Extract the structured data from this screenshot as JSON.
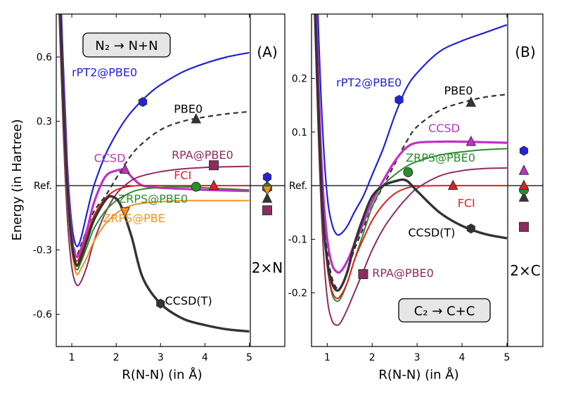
{
  "chart_data": [
    {
      "type": "line",
      "panel": "A",
      "title": "N₂ → N+N",
      "xlabel": "R(N-N) (in Å)",
      "ylabel": "Energy (in Hartree)",
      "xlim": [
        0.65,
        5.8
      ],
      "ylim": [
        -0.75,
        0.8
      ],
      "xticks": [
        1,
        2,
        3,
        4,
        5
      ],
      "yticks": [
        {
          "v": 0.6,
          "label": "0.6"
        },
        {
          "v": 0.3,
          "label": "0.3"
        },
        {
          "v": 0.0,
          "label": "Ref."
        },
        {
          "v": -0.3,
          "label": "-0.3"
        },
        {
          "v": -0.6,
          "label": "-0.6"
        }
      ],
      "limit_x": 5.0,
      "limit_label": "2×N",
      "series": [
        {
          "name": "rPT2@PBE0",
          "color": "#2222dd",
          "dash": false,
          "width": 2.2,
          "x": [
            0.65,
            0.8,
            0.9,
            1.0,
            1.1,
            1.2,
            1.35,
            1.5,
            1.75,
            2.0,
            2.25,
            2.5,
            2.75,
            3.0,
            3.5,
            4.0,
            4.5,
            5.0
          ],
          "y": [
            1.5,
            0.6,
            0.1,
            -0.18,
            -0.28,
            -0.25,
            -0.12,
            0.0,
            0.14,
            0.24,
            0.32,
            0.38,
            0.43,
            0.47,
            0.53,
            0.57,
            0.6,
            0.62
          ],
          "marker": {
            "shape": "hexagon",
            "x": 2.6,
            "y": 0.39,
            "label_x": 1.0,
            "label_y": 0.51
          },
          "limit_marker": {
            "shape": "hexagon",
            "y": 0.04
          }
        },
        {
          "name": "PBE0",
          "color": "#333333",
          "dash": true,
          "width": 2.2,
          "x": [
            0.65,
            0.8,
            0.9,
            1.0,
            1.1,
            1.2,
            1.35,
            1.5,
            1.75,
            1.9,
            2.2,
            2.5,
            3.0,
            3.5,
            4.0,
            4.5,
            5.0
          ],
          "y": [
            1.4,
            0.5,
            0.05,
            -0.22,
            -0.32,
            -0.28,
            -0.2,
            -0.12,
            -0.05,
            0.0,
            0.1,
            0.18,
            0.26,
            0.3,
            0.32,
            0.335,
            0.345
          ],
          "marker": {
            "shape": "triangle-up",
            "x": 3.8,
            "y": 0.31,
            "label_x": 3.3,
            "label_y": 0.34
          },
          "limit_marker": {
            "shape": "triangle-up",
            "y": -0.06
          }
        },
        {
          "name": "CCSD",
          "color": "#c030c8",
          "dash": false,
          "width": 3.2,
          "x": [
            0.65,
            0.8,
            0.9,
            1.0,
            1.1,
            1.2,
            1.35,
            1.5,
            1.75,
            2.0,
            2.2,
            2.4,
            2.6,
            3.0,
            3.5,
            4.0,
            5.0
          ],
          "y": [
            1.4,
            0.5,
            0.05,
            -0.24,
            -0.33,
            -0.3,
            -0.2,
            -0.08,
            0.04,
            0.07,
            0.07,
            0.03,
            0.0,
            -0.01,
            -0.015,
            -0.02,
            -0.025
          ],
          "marker": {
            "shape": "triangle-up",
            "x": 2.2,
            "y": 0.075,
            "label_x": 1.5,
            "label_y": 0.11
          },
          "limit_marker": {
            "shape": "triangle-up",
            "y": -0.005
          }
        },
        {
          "name": "RPA@PBE0",
          "color": "#8e2c5e",
          "dash": false,
          "width": 2.0,
          "x": [
            0.65,
            0.8,
            0.9,
            1.0,
            1.1,
            1.2,
            1.35,
            1.5,
            1.75,
            2.0,
            2.25,
            2.5,
            3.0,
            3.5,
            4.0,
            4.5,
            5.0
          ],
          "y": [
            1.2,
            0.3,
            -0.15,
            -0.38,
            -0.46,
            -0.45,
            -0.37,
            -0.26,
            -0.13,
            -0.04,
            0.01,
            0.04,
            0.065,
            0.078,
            0.085,
            0.088,
            0.09
          ],
          "marker": {
            "shape": "square",
            "x": 4.2,
            "y": 0.095,
            "label_x": 3.25,
            "label_y": 0.125
          },
          "limit_marker": {
            "shape": "square",
            "y": -0.115
          }
        },
        {
          "name": "FCI",
          "color": "#e02020",
          "dash": false,
          "width": 2.0,
          "x": [
            0.65,
            0.8,
            0.9,
            1.0,
            1.1,
            1.2,
            1.35,
            1.5,
            1.75,
            2.0,
            2.25,
            2.5,
            3.0,
            3.5,
            4.0,
            4.5,
            5.0
          ],
          "y": [
            1.4,
            0.45,
            0.0,
            -0.26,
            -0.35,
            -0.32,
            -0.23,
            -0.14,
            -0.06,
            -0.02,
            -0.005,
            0.0,
            0.0,
            0.0,
            0.0,
            0.0,
            0.0
          ],
          "marker": {
            "shape": "triangle-up",
            "x": 4.2,
            "y": 0.0,
            "label_x": 3.3,
            "label_y": 0.03
          },
          "limit_marker": {
            "shape": "triangle-up",
            "y": 0.0
          }
        },
        {
          "name": "ZRPS@PBE0",
          "color": "#2e8b2e",
          "dash": false,
          "width": 2.0,
          "x": [
            0.65,
            0.8,
            0.9,
            1.0,
            1.1,
            1.2,
            1.35,
            1.5,
            1.75,
            2.0,
            2.25,
            2.5,
            3.0,
            3.5,
            4.0,
            4.5,
            5.0
          ],
          "y": [
            1.3,
            0.4,
            -0.05,
            -0.3,
            -0.39,
            -0.36,
            -0.28,
            -0.2,
            -0.12,
            -0.07,
            -0.04,
            -0.02,
            -0.008,
            -0.005,
            -0.01,
            -0.015,
            -0.02
          ],
          "marker": {
            "shape": "circle",
            "x": 3.8,
            "y": -0.005,
            "label_x": 2.05,
            "label_y": -0.08
          },
          "limit_marker": {
            "shape": "circle",
            "y": -0.01
          }
        },
        {
          "name": "ZRPS@PBE",
          "color": "#f5901e",
          "dash": false,
          "width": 2.0,
          "x": [
            0.65,
            0.8,
            0.9,
            1.0,
            1.1,
            1.2,
            1.35,
            1.5,
            1.75,
            2.0,
            2.25,
            2.5,
            3.0,
            3.5,
            4.0,
            4.5,
            5.0
          ],
          "y": [
            1.3,
            0.4,
            -0.05,
            -0.3,
            -0.41,
            -0.39,
            -0.33,
            -0.26,
            -0.18,
            -0.13,
            -0.1,
            -0.085,
            -0.075,
            -0.07,
            -0.07,
            -0.07,
            -0.07
          ],
          "marker": {
            "shape": "triangle-down",
            "x": 2.2,
            "y": -0.12,
            "label_x": 1.7,
            "label_y": -0.17
          },
          "limit_marker": {
            "shape": "triangle-down",
            "y": -0.02
          }
        },
        {
          "name": "CCSD(T)",
          "color": "#333333",
          "dash": false,
          "width": 3.4,
          "x": [
            0.65,
            0.8,
            0.9,
            1.0,
            1.1,
            1.2,
            1.35,
            1.5,
            1.75,
            1.9,
            2.1,
            2.35,
            2.6,
            3.0,
            3.5,
            4.0,
            4.5,
            5.0
          ],
          "y": [
            1.4,
            0.45,
            0.0,
            -0.27,
            -0.37,
            -0.34,
            -0.25,
            -0.16,
            -0.07,
            -0.05,
            -0.09,
            -0.24,
            -0.43,
            -0.55,
            -0.62,
            -0.65,
            -0.67,
            -0.68
          ],
          "marker": {
            "shape": "hexagon",
            "x": 3.0,
            "y": -0.55,
            "label_x": 3.1,
            "label_y": -0.555
          },
          "limit_marker": null
        }
      ]
    },
    {
      "type": "line",
      "panel": "B",
      "title": "C₂ → C+C",
      "xlabel": "R(N-N) (in Å)",
      "ylabel": "",
      "xlim": [
        0.65,
        5.8
      ],
      "ylim": [
        -0.3,
        0.32
      ],
      "xticks": [
        1,
        2,
        3,
        4,
        5
      ],
      "yticks": [
        {
          "v": 0.2,
          "label": "0.2"
        },
        {
          "v": 0.1,
          "label": "0.1"
        },
        {
          "v": 0.0,
          "label": "Ref."
        },
        {
          "v": -0.1,
          "label": "-0.1"
        },
        {
          "v": -0.2,
          "label": "-0.2"
        }
      ],
      "limit_x": 5.0,
      "limit_label": "2×C",
      "series": [
        {
          "name": "rPT2@PBE0",
          "color": "#2222dd",
          "dash": false,
          "width": 2.2,
          "x": [
            0.65,
            0.8,
            0.9,
            1.0,
            1.1,
            1.2,
            1.3,
            1.45,
            1.6,
            1.8,
            2.0,
            2.25,
            2.5,
            2.75,
            3.0,
            3.5,
            4.0,
            4.5,
            5.0
          ],
          "y": [
            0.7,
            0.3,
            0.1,
            -0.02,
            -0.07,
            -0.09,
            -0.09,
            -0.075,
            -0.05,
            -0.02,
            0.02,
            0.07,
            0.13,
            0.18,
            0.21,
            0.25,
            0.27,
            0.285,
            0.3
          ],
          "marker": {
            "shape": "hexagon",
            "x": 2.6,
            "y": 0.16,
            "label_x": 1.2,
            "label_y": 0.185
          },
          "limit_marker": {
            "shape": "hexagon",
            "y": 0.065
          }
        },
        {
          "name": "PBE0",
          "color": "#333333",
          "dash": true,
          "width": 2.2,
          "x": [
            0.65,
            0.8,
            0.9,
            1.0,
            1.1,
            1.2,
            1.3,
            1.45,
            1.6,
            1.8,
            2.0,
            2.25,
            2.5,
            2.75,
            3.0,
            3.5,
            4.0,
            4.5,
            5.0
          ],
          "y": [
            0.6,
            0.2,
            0.0,
            -0.12,
            -0.17,
            -0.19,
            -0.19,
            -0.16,
            -0.12,
            -0.08,
            -0.04,
            0.0,
            0.04,
            0.08,
            0.11,
            0.14,
            0.155,
            0.165,
            0.17
          ],
          "marker": {
            "shape": "triangle-up",
            "x": 4.2,
            "y": 0.155,
            "label_x": 3.6,
            "label_y": 0.17
          },
          "limit_marker": {
            "shape": "triangle-up",
            "y": -0.022
          }
        },
        {
          "name": "CCSD",
          "color": "#c030c8",
          "dash": false,
          "width": 3.2,
          "x": [
            0.65,
            0.8,
            0.9,
            1.0,
            1.1,
            1.2,
            1.3,
            1.45,
            1.6,
            1.8,
            2.0,
            2.25,
            2.5,
            2.75,
            3.0,
            3.5,
            4.0,
            4.5,
            5.0
          ],
          "y": [
            0.6,
            0.2,
            0.0,
            -0.1,
            -0.145,
            -0.16,
            -0.16,
            -0.14,
            -0.11,
            -0.07,
            -0.03,
            0.01,
            0.045,
            0.07,
            0.08,
            0.082,
            0.082,
            0.081,
            0.08
          ],
          "marker": {
            "shape": "triangle-up",
            "x": 4.2,
            "y": 0.082,
            "label_x": 3.25,
            "label_y": 0.1
          },
          "limit_marker": {
            "shape": "triangle-up",
            "y": 0.028
          }
        },
        {
          "name": "ZRPS@PBE0",
          "color": "#2e8b2e",
          "dash": false,
          "width": 2.0,
          "x": [
            0.65,
            0.8,
            0.9,
            1.0,
            1.1,
            1.2,
            1.3,
            1.45,
            1.6,
            1.8,
            2.0,
            2.25,
            2.5,
            2.75,
            3.0,
            3.5,
            4.0,
            4.5,
            5.0
          ],
          "y": [
            0.55,
            0.15,
            -0.05,
            -0.15,
            -0.2,
            -0.215,
            -0.21,
            -0.18,
            -0.14,
            -0.09,
            -0.04,
            0.0,
            0.02,
            0.035,
            0.045,
            0.057,
            0.063,
            0.067,
            0.069
          ],
          "marker": {
            "shape": "circle",
            "x": 2.8,
            "y": 0.025,
            "label_x": 2.75,
            "label_y": 0.045
          },
          "limit_marker": {
            "shape": "circle",
            "y": -0.008
          }
        },
        {
          "name": "FCI",
          "color": "#e02020",
          "dash": false,
          "width": 2.0,
          "x": [
            0.65,
            0.8,
            0.9,
            1.0,
            1.1,
            1.2,
            1.3,
            1.45,
            1.6,
            1.8,
            2.0,
            2.25,
            2.5,
            2.75,
            3.0,
            3.5,
            4.0,
            4.5,
            5.0
          ],
          "y": [
            0.55,
            0.15,
            -0.05,
            -0.15,
            -0.195,
            -0.21,
            -0.205,
            -0.18,
            -0.14,
            -0.1,
            -0.065,
            -0.035,
            -0.015,
            -0.005,
            -0.001,
            0.0,
            0.0,
            0.0,
            0.0
          ],
          "marker": {
            "shape": "triangle-up",
            "x": 3.8,
            "y": 0.0,
            "label_x": 3.9,
            "label_y": -0.04
          },
          "limit_marker": {
            "shape": "triangle-up",
            "y": 0.0
          }
        },
        {
          "name": "RPA@PBE0",
          "color": "#8e2c5e",
          "dash": false,
          "width": 2.0,
          "x": [
            0.65,
            0.8,
            0.9,
            1.0,
            1.1,
            1.2,
            1.3,
            1.45,
            1.6,
            1.8,
            2.0,
            2.25,
            2.5,
            2.75,
            3.0,
            3.5,
            4.0,
            4.5,
            5.0
          ],
          "y": [
            0.5,
            0.1,
            -0.1,
            -0.21,
            -0.25,
            -0.26,
            -0.255,
            -0.23,
            -0.2,
            -0.16,
            -0.12,
            -0.08,
            -0.05,
            -0.025,
            -0.005,
            0.018,
            0.028,
            0.032,
            0.033
          ],
          "marker": {
            "shape": "square",
            "x": 1.8,
            "y": -0.165,
            "label_x": 2.0,
            "label_y": -0.17
          },
          "limit_marker": {
            "shape": "square",
            "y": -0.077
          }
        },
        {
          "name": "CCSD(T)",
          "color": "#333333",
          "dash": false,
          "width": 3.4,
          "x": [
            0.65,
            0.8,
            0.9,
            1.0,
            1.1,
            1.2,
            1.3,
            1.45,
            1.6,
            1.8,
            2.0,
            2.25,
            2.5,
            2.75,
            3.0,
            3.5,
            4.0,
            4.5,
            5.0
          ],
          "y": [
            0.55,
            0.15,
            -0.05,
            -0.14,
            -0.18,
            -0.195,
            -0.19,
            -0.16,
            -0.11,
            -0.06,
            -0.02,
            0.0,
            0.008,
            0.01,
            -0.01,
            -0.05,
            -0.075,
            -0.09,
            -0.098
          ],
          "marker": {
            "shape": "hexagon",
            "x": 4.2,
            "y": -0.08,
            "label_x": 2.8,
            "label_y": -0.095
          },
          "limit_marker": null
        }
      ]
    }
  ]
}
